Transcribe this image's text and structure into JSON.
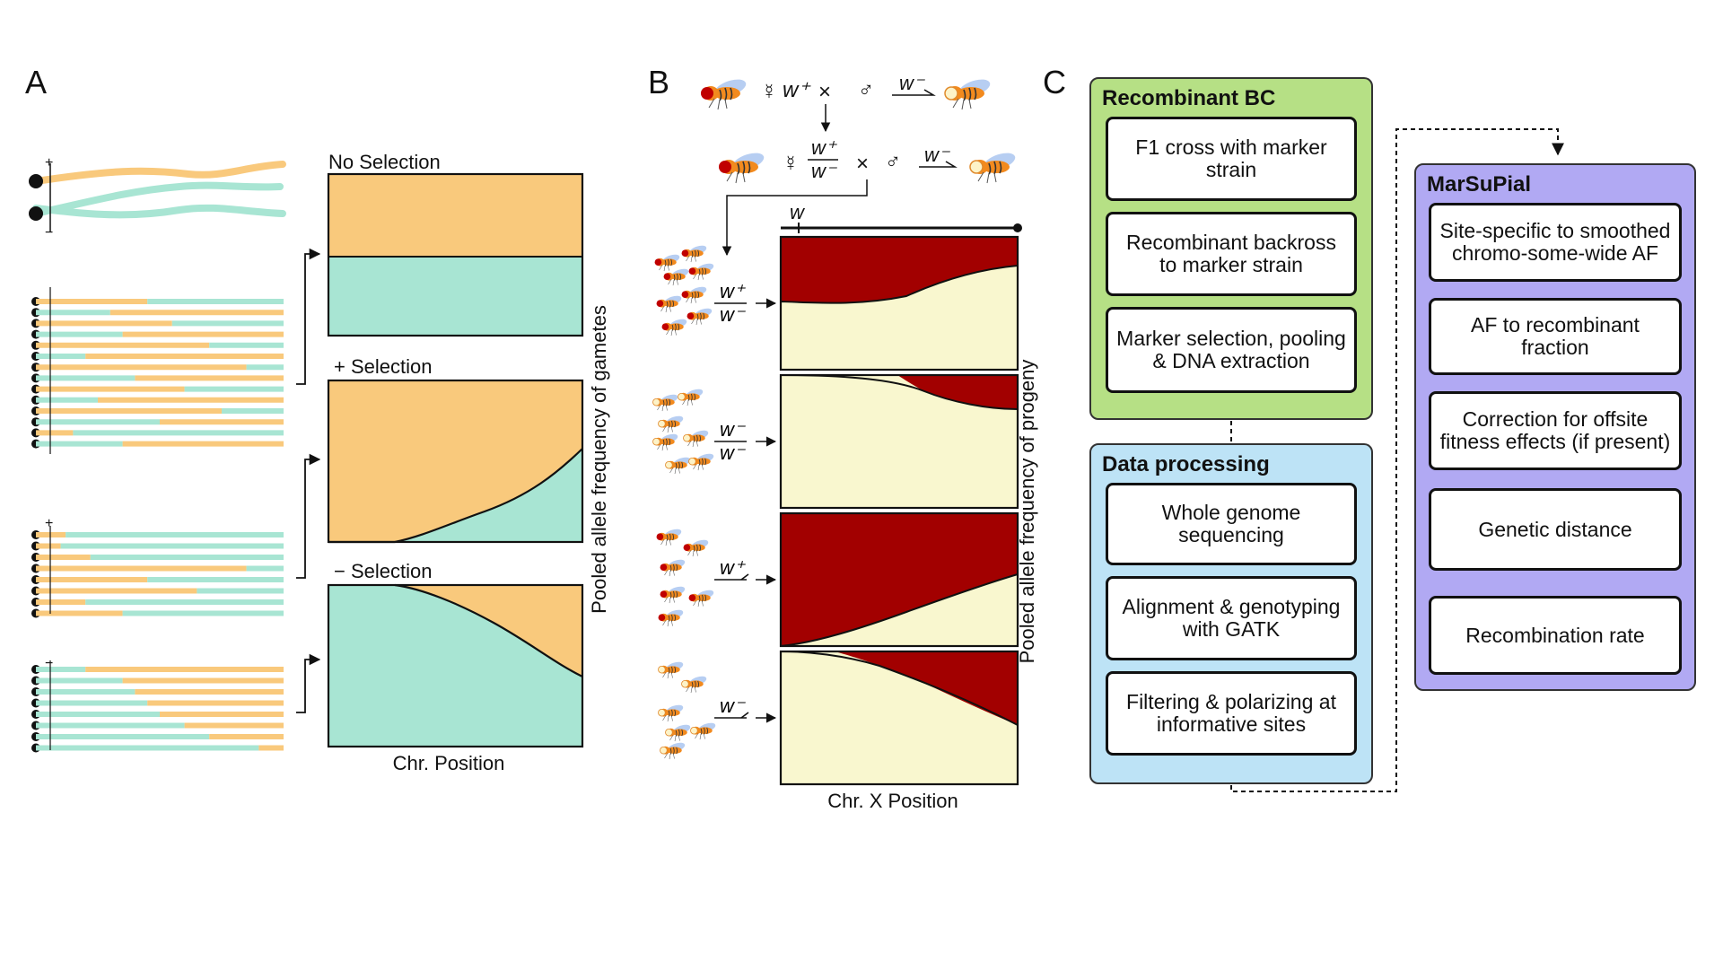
{
  "panel_a": {
    "label": "A",
    "plot_titles": [
      "No Selection",
      "+  Selection",
      "−  Selection"
    ],
    "xlabel": "Chr. Position",
    "ylabel": "Pooled allele frequency of gametes",
    "strand_signs": {
      "plus": "+",
      "minus": "−"
    },
    "colors": {
      "orange": "#f9c97c",
      "teal": "#a8e5d3"
    }
  },
  "panel_b": {
    "label": "B",
    "cross1": {
      "female_sym": "☿",
      "female_geno": "w⁺",
      "times": "×",
      "male_sym": "♂",
      "male_geno": "w⁻"
    },
    "cross2": {
      "female_sym": "☿",
      "top": "w⁺",
      "bottom": "w⁻",
      "times": "×",
      "male_sym": "♂",
      "male_geno": "w⁻"
    },
    "marker": "w",
    "rows": [
      {
        "top": "w⁺",
        "bottom": "w⁻"
      },
      {
        "top": "w⁻",
        "bottom": "w⁻"
      },
      {
        "top": "w⁺",
        "bottom": ""
      },
      {
        "top": "w⁻",
        "bottom": ""
      }
    ],
    "xlabel": "Chr. X Position",
    "ylabel": "Pooled allele frequency of progeny",
    "colors": {
      "red": "#a20000",
      "cream": "#f9f7cf"
    }
  },
  "panel_c": {
    "label": "C",
    "recombinant_bc": {
      "title": "Recombinant BC",
      "color": "#b6e085",
      "steps": [
        "F1 cross with marker strain",
        "Recombinant backross to marker strain",
        "Marker selection, pooling & DNA extraction"
      ]
    },
    "data_processing": {
      "title": "Data processing",
      "color": "#bde3f6",
      "steps": [
        "Whole genome sequencing",
        "Alignment & genotyping with GATK",
        "Filtering & polarizing at informative sites"
      ]
    },
    "marsupial": {
      "title": "MarSuPial",
      "color": "#b1a9f3",
      "steps": [
        "Site-specific to smoothed chromo-some-wide AF",
        "AF to recombinant fraction",
        "Correction for offsite fitness effects (if present)",
        "Genetic distance",
        "Recombination rate"
      ]
    }
  }
}
